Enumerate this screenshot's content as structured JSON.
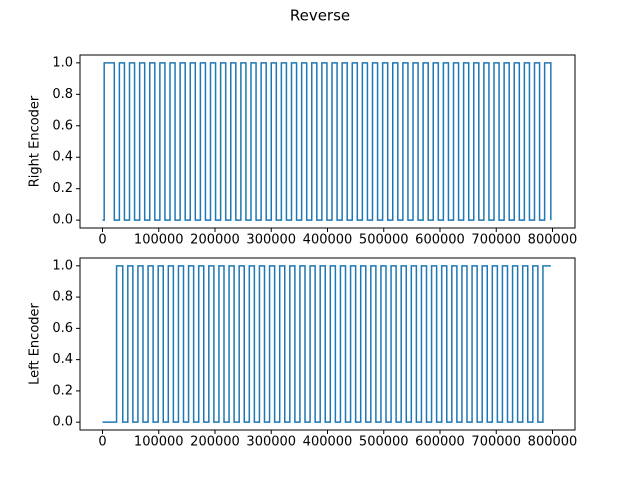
{
  "title": "Reverse",
  "chart_data": [
    {
      "type": "line",
      "step": "post",
      "ylabel": "Right Encoder",
      "color": "#1f77b4",
      "x": [
        0,
        3000,
        21000,
        30000,
        39000,
        48000,
        57000,
        66000,
        75000,
        84000,
        93000,
        102000,
        111000,
        120000,
        129000,
        138000,
        147000,
        156000,
        165000,
        174000,
        183000,
        192000,
        201000,
        210000,
        219000,
        228000,
        237000,
        246000,
        255000,
        264000,
        273000,
        282000,
        291000,
        300000,
        309000,
        318000,
        327000,
        336000,
        345000,
        354000,
        363000,
        372000,
        381000,
        390000,
        399000,
        408000,
        417000,
        426000,
        435000,
        444000,
        453000,
        462000,
        471000,
        480000,
        489000,
        498000,
        507000,
        516000,
        525000,
        534000,
        543000,
        552000,
        561000,
        570000,
        579000,
        588000,
        597000,
        606000,
        615000,
        624000,
        633000,
        642000,
        651000,
        660000,
        669000,
        678000,
        687000,
        696000,
        705000,
        714000,
        723000,
        732000,
        741000,
        750000,
        759000,
        768000,
        777000,
        786000,
        797000
      ],
      "values": [
        0,
        1,
        0,
        1,
        0,
        1,
        0,
        1,
        0,
        1,
        0,
        1,
        0,
        1,
        0,
        1,
        0,
        1,
        0,
        1,
        0,
        1,
        0,
        1,
        0,
        1,
        0,
        1,
        0,
        1,
        0,
        1,
        0,
        1,
        0,
        1,
        0,
        1,
        0,
        1,
        0,
        1,
        0,
        1,
        0,
        1,
        0,
        1,
        0,
        1,
        0,
        1,
        0,
        1,
        0,
        1,
        0,
        1,
        0,
        1,
        0,
        1,
        0,
        1,
        0,
        1,
        0,
        1,
        0,
        1,
        0,
        1,
        0,
        1,
        0,
        1,
        0,
        1,
        0,
        1,
        0,
        1,
        0,
        1,
        0,
        1,
        0,
        1,
        0
      ],
      "xlim": [
        -40000,
        840000
      ],
      "xticks": [
        0,
        100000,
        200000,
        300000,
        400000,
        500000,
        600000,
        700000,
        800000
      ],
      "ylim": [
        -0.05,
        1.05
      ],
      "yticks": [
        {
          "value": 0,
          "label": "0.0"
        },
        {
          "value": 0.2,
          "label": "0.2"
        },
        {
          "value": 0.4,
          "label": "0.4"
        },
        {
          "value": 0.6,
          "label": "0.6"
        },
        {
          "value": 0.8,
          "label": "0.8"
        },
        {
          "value": 1,
          "label": "1.0"
        }
      ]
    },
    {
      "type": "line",
      "step": "post",
      "ylabel": "Left Encoder",
      "color": "#1f77b4",
      "x": [
        0,
        25000,
        36000,
        45000,
        54000,
        63000,
        72000,
        81000,
        90000,
        99000,
        108000,
        117000,
        126000,
        135000,
        144000,
        153000,
        162000,
        171000,
        180000,
        189000,
        198000,
        207000,
        216000,
        225000,
        234000,
        243000,
        252000,
        261000,
        270000,
        279000,
        288000,
        297000,
        306000,
        315000,
        324000,
        333000,
        342000,
        351000,
        360000,
        369000,
        378000,
        387000,
        396000,
        405000,
        414000,
        423000,
        432000,
        441000,
        450000,
        459000,
        468000,
        477000,
        486000,
        495000,
        504000,
        513000,
        522000,
        531000,
        540000,
        549000,
        558000,
        567000,
        576000,
        585000,
        594000,
        603000,
        612000,
        621000,
        630000,
        639000,
        648000,
        657000,
        666000,
        675000,
        684000,
        693000,
        702000,
        711000,
        720000,
        729000,
        738000,
        747000,
        756000,
        765000,
        774000,
        783000,
        797000
      ],
      "values": [
        0,
        1,
        0,
        1,
        0,
        1,
        0,
        1,
        0,
        1,
        0,
        1,
        0,
        1,
        0,
        1,
        0,
        1,
        0,
        1,
        0,
        1,
        0,
        1,
        0,
        1,
        0,
        1,
        0,
        1,
        0,
        1,
        0,
        1,
        0,
        1,
        0,
        1,
        0,
        1,
        0,
        1,
        0,
        1,
        0,
        1,
        0,
        1,
        0,
        1,
        0,
        1,
        0,
        1,
        0,
        1,
        0,
        1,
        0,
        1,
        0,
        1,
        0,
        1,
        0,
        1,
        0,
        1,
        0,
        1,
        0,
        1,
        0,
        1,
        0,
        1,
        0,
        1,
        0,
        1,
        0,
        1,
        0,
        1,
        0,
        1,
        1
      ],
      "xlim": [
        -40000,
        840000
      ],
      "xticks": [
        0,
        100000,
        200000,
        300000,
        400000,
        500000,
        600000,
        700000,
        800000
      ],
      "ylim": [
        -0.05,
        1.05
      ],
      "yticks": [
        {
          "value": 0,
          "label": "0.0"
        },
        {
          "value": 0.2,
          "label": "0.2"
        },
        {
          "value": 0.4,
          "label": "0.4"
        },
        {
          "value": 0.6,
          "label": "0.6"
        },
        {
          "value": 0.8,
          "label": "0.8"
        },
        {
          "value": 1,
          "label": "1.0"
        }
      ]
    }
  ]
}
